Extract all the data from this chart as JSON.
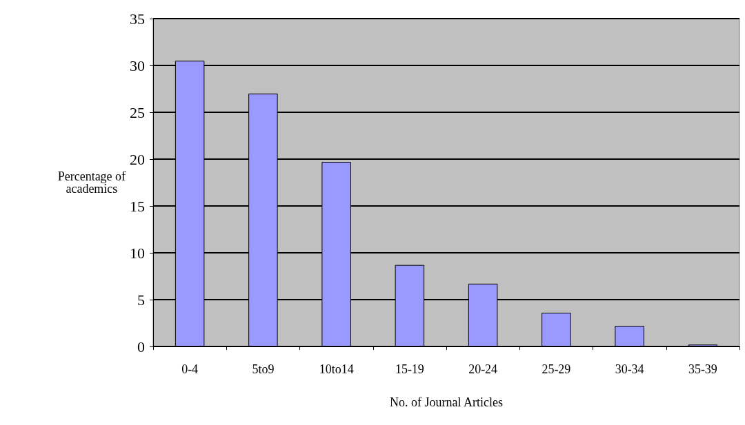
{
  "chart_data": {
    "type": "bar",
    "xlabel": "No. of Journal Articles",
    "ylabel": "Percentage of\nacademics",
    "categories": [
      "0-4",
      "5to9",
      "10to14",
      "15-19",
      "20-24",
      "25-29",
      "30-34",
      "35-39"
    ],
    "values": [
      30.5,
      27,
      19.7,
      8.7,
      6.7,
      3.6,
      2.2,
      0.2
    ],
    "color": "#9999ff",
    "ylim": [
      0,
      35
    ],
    "yticks": [
      0,
      5,
      10,
      15,
      20,
      25,
      30,
      35
    ],
    "grid": "y"
  }
}
